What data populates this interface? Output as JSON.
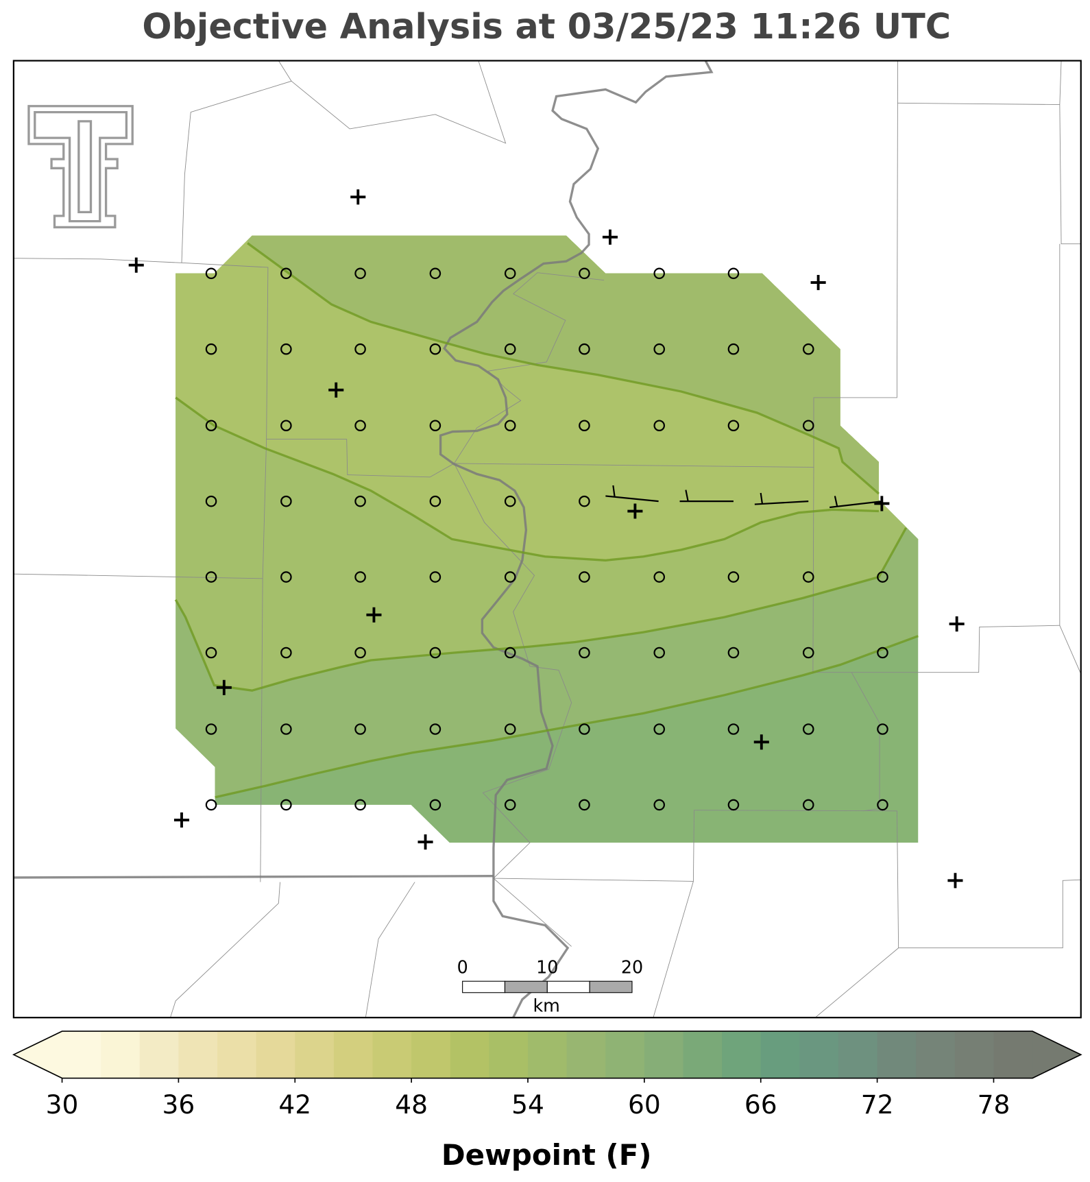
{
  "title": "Objective Analysis at 03/25/23 11:26 UTC",
  "colorbar": {
    "label": "Dewpoint (F)",
    "range": [
      30,
      80
    ],
    "ticks": [
      30,
      36,
      42,
      48,
      54,
      60,
      66,
      72,
      78
    ],
    "colors": [
      "#fdf9e0",
      "#faf5d6",
      "#f3ebc5",
      "#efe4b5",
      "#ebdfa8",
      "#e5d99a",
      "#dcd48c",
      "#d3cf7e",
      "#c9cb74",
      "#c0c76c",
      "#b3c265",
      "#a9bf66",
      "#a0bb6b",
      "#98b671",
      "#8fb374",
      "#86ae77",
      "#7aa978",
      "#6fa47b",
      "#689d7e",
      "#6a9780",
      "#6e917f",
      "#71897b",
      "#758478",
      "#767f74",
      "#757a70"
    ],
    "extend": "both"
  },
  "scale_bar": {
    "ticks": [
      0,
      10,
      20
    ],
    "unit": "km"
  }
}
